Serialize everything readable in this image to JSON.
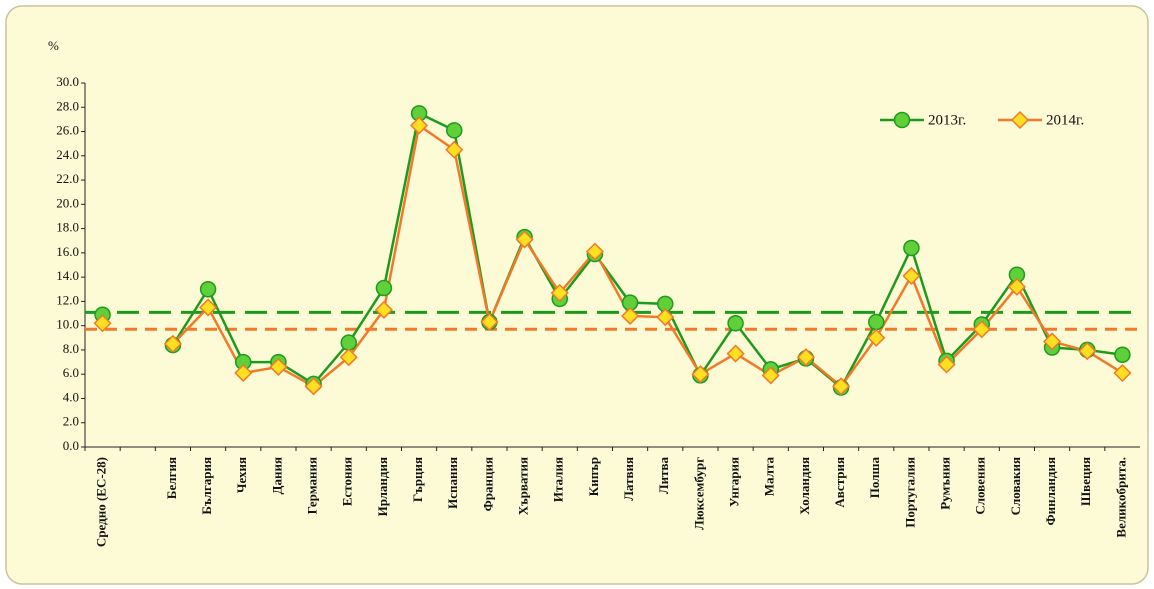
{
  "chart_data": {
    "type": "line",
    "y_label": "%",
    "categories": [
      "Средно (ЕС-28)",
      null,
      "Белгия",
      "България",
      "Чехия",
      "Дания",
      "Германия",
      "Естония",
      "Ирландия",
      "Гърция",
      "Испания",
      "Франция",
      "Хърватия",
      "Италия",
      "Кипър",
      "Латвия",
      "Литва",
      "Люксембург",
      "Унгария",
      "Малта",
      "Холандия",
      "Австрия",
      "Полша",
      "Португалия",
      "Румъния",
      "Словения",
      "Словакия",
      "Финландия",
      "Швеция",
      "Великобрита."
    ],
    "series": [
      {
        "name": "2013г.",
        "color": "#1e9a1e",
        "marker_fill": "#5fd03a",
        "marker": "circle",
        "values": [
          10.9,
          null,
          8.4,
          13.0,
          7.0,
          7.0,
          5.2,
          8.6,
          13.1,
          27.5,
          26.1,
          10.3,
          17.3,
          12.2,
          15.9,
          11.9,
          11.8,
          5.9,
          10.2,
          6.4,
          7.3,
          4.9,
          10.3,
          16.4,
          7.1,
          10.1,
          14.2,
          8.2,
          8.0,
          7.6
        ]
      },
      {
        "name": "2014г.",
        "color": "#f07a2a",
        "marker_fill": "#ffe020",
        "marker": "diamond",
        "values": [
          10.2,
          null,
          8.5,
          11.5,
          6.1,
          6.6,
          5.0,
          7.4,
          11.3,
          26.5,
          24.5,
          10.3,
          17.1,
          12.7,
          16.1,
          10.8,
          10.7,
          6.0,
          7.7,
          5.9,
          7.4,
          5.0,
          9.0,
          14.1,
          6.8,
          9.7,
          13.2,
          8.7,
          7.9,
          6.1
        ]
      }
    ],
    "reference_lines": [
      {
        "value": 11.1,
        "color": "#1e9a1e"
      },
      {
        "value": 9.7,
        "color": "#f07a2a"
      }
    ],
    "ylim": [
      0,
      30
    ],
    "yticks": [
      {
        "value": 0,
        "label": "0.0"
      },
      {
        "value": 2,
        "label": "2.0"
      },
      {
        "value": 4,
        "label": "4.0"
      },
      {
        "value": 6,
        "label": "6.0"
      },
      {
        "value": 8,
        "label": "8.0"
      },
      {
        "value": 10,
        "label": "10.0"
      },
      {
        "value": 12,
        "label": "12.0"
      },
      {
        "value": 14,
        "label": "14.0"
      },
      {
        "value": 16,
        "label": "16.0"
      },
      {
        "value": 18,
        "label": "18.0"
      },
      {
        "value": 20,
        "label": "20.0"
      },
      {
        "value": 22,
        "label": "22.0"
      },
      {
        "value": 24,
        "label": "24.0"
      },
      {
        "value": 26,
        "label": "26.0"
      },
      {
        "value": 28,
        "label": "28.0"
      },
      {
        "value": 30,
        "label": "30.0"
      }
    ],
    "grid": false,
    "legend": "top-right"
  }
}
